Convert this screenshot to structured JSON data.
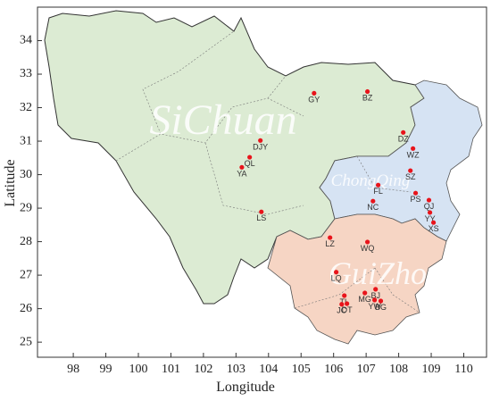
{
  "chart_data": {
    "type": "scatter",
    "xlabel": "Longitude",
    "ylabel": "Latitude",
    "xlim": [
      96.9,
      110.7
    ],
    "ylim": [
      24.55,
      35.0
    ],
    "xticks": [
      98,
      99,
      100,
      101,
      102,
      103,
      104,
      105,
      106,
      107,
      108,
      109,
      110
    ],
    "yticks": [
      25,
      26,
      27,
      28,
      29,
      30,
      31,
      32,
      33,
      34
    ],
    "color": "#e8141b",
    "annotations": [
      "SiChuan",
      "ChongQing",
      "GuiZhou"
    ],
    "labels": [
      "GY",
      "BZ",
      "DZ",
      "DJY",
      "WZ",
      "QL",
      "YA",
      "SZ",
      "FL",
      "PS",
      "QJ",
      "NC",
      "YY",
      "LS",
      "XS",
      "LZ",
      "WQ",
      "LQ",
      "MG",
      "BJ",
      "TL",
      "DT",
      "JC",
      "YW",
      "BG"
    ],
    "x": [
      105.4,
      107.04,
      108.14,
      103.75,
      108.44,
      103.42,
      103.18,
      108.36,
      107.37,
      108.52,
      108.93,
      107.21,
      108.96,
      103.78,
      109.07,
      105.89,
      107.04,
      106.08,
      106.96,
      107.29,
      106.33,
      106.41,
      106.25,
      107.26,
      107.45
    ],
    "y": [
      32.43,
      32.48,
      31.26,
      31.02,
      30.78,
      30.52,
      30.22,
      30.12,
      29.69,
      29.45,
      29.24,
      29.21,
      28.87,
      28.89,
      28.57,
      28.12,
      27.99,
      27.09,
      26.47,
      26.58,
      26.39,
      26.15,
      26.13,
      26.26,
      26.23
    ]
  }
}
